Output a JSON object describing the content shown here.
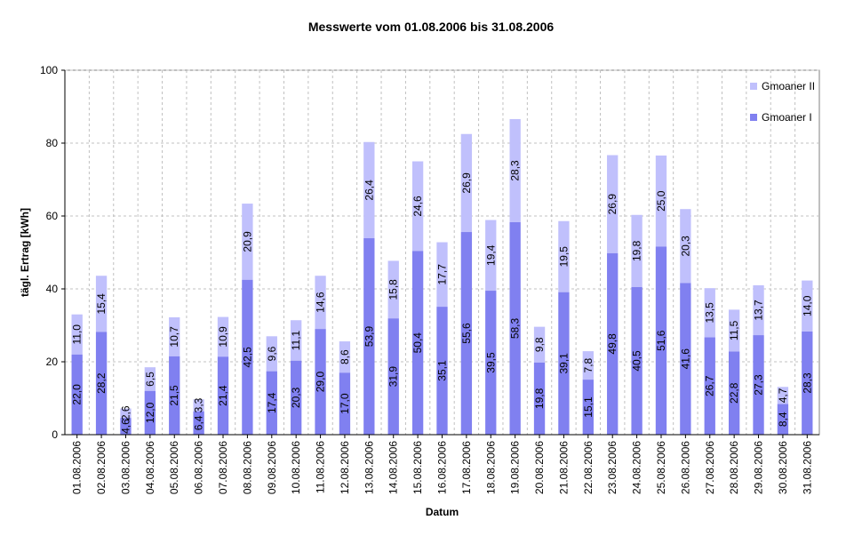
{
  "chart_data": {
    "type": "bar",
    "stacked": true,
    "title": "Messwerte vom 01.08.2006 bis 31.08.2006",
    "xlabel": "Datum",
    "ylabel": "tägl. Ertrag [kWh]",
    "ylim": [
      0,
      100
    ],
    "yticks": [
      "0",
      "20",
      "40",
      "60",
      "80",
      "100"
    ],
    "grid": true,
    "legend_position": "top-right",
    "categories": [
      "01.08.2006",
      "02.08.2006",
      "03.08.2006",
      "04.08.2006",
      "05.08.2006",
      "06.08.2006",
      "07.08.2006",
      "08.08.2006",
      "09.08.2006",
      "10.08.2006",
      "11.08.2006",
      "12.08.2006",
      "13.08.2006",
      "14.08.2006",
      "15.08.2006",
      "16.08.2006",
      "17.08.2006",
      "18.08.2006",
      "19.08.2006",
      "20.08.2006",
      "21.08.2006",
      "22.08.2006",
      "23.08.2006",
      "24.08.2006",
      "25.08.2006",
      "26.08.2006",
      "27.08.2006",
      "28.08.2006",
      "29.08.2006",
      "30.08.2006",
      "31.08.2006"
    ],
    "series": [
      {
        "name": "Gmoaner I",
        "color": "#8080f0",
        "values": [
          22.0,
          28.2,
          4.6,
          12.0,
          21.5,
          6.4,
          21.4,
          42.5,
          17.4,
          20.3,
          29.0,
          17.0,
          53.9,
          31.9,
          50.4,
          35.1,
          55.6,
          39.5,
          58.3,
          19.8,
          39.1,
          15.1,
          49.8,
          40.5,
          51.6,
          41.6,
          26.7,
          22.8,
          27.3,
          8.4,
          28.3
        ],
        "labels": [
          "22,0",
          "28,2",
          "4,6",
          "12,0",
          "21,5",
          "6,4",
          "21,4",
          "42,5",
          "17,4",
          "20,3",
          "29,0",
          "17,0",
          "53,9",
          "31,9",
          "50,4",
          "35,1",
          "55,6",
          "39,5",
          "58,3",
          "19,8",
          "39,1",
          "15,1",
          "49,8",
          "40,5",
          "51,6",
          "41,6",
          "26,7",
          "22,8",
          "27,3",
          "8,4",
          "28,3"
        ]
      },
      {
        "name": "Gmoaner II",
        "color": "#c0c0fc",
        "values": [
          11.0,
          15.4,
          2.6,
          6.5,
          10.7,
          3.3,
          10.9,
          20.9,
          9.6,
          11.1,
          14.6,
          8.6,
          26.4,
          15.8,
          24.6,
          17.7,
          26.9,
          19.4,
          28.3,
          9.8,
          19.5,
          7.8,
          26.9,
          19.8,
          25.0,
          20.3,
          13.5,
          11.5,
          13.7,
          4.7,
          14.0
        ],
        "labels": [
          "11,0",
          "15,4",
          "2,6",
          "6,5",
          "10,7",
          "3,3",
          "10,9",
          "20,9",
          "9,6",
          "11,1",
          "14,6",
          "8,6",
          "26,4",
          "15,8",
          "24,6",
          "17,7",
          "26,9",
          "19,4",
          "28,3",
          "9,8",
          "19,5",
          "7,8",
          "26,9",
          "19,8",
          "25,0",
          "20,3",
          "13,5",
          "11,5",
          "13,7",
          "4,7",
          "14,0"
        ]
      }
    ]
  }
}
